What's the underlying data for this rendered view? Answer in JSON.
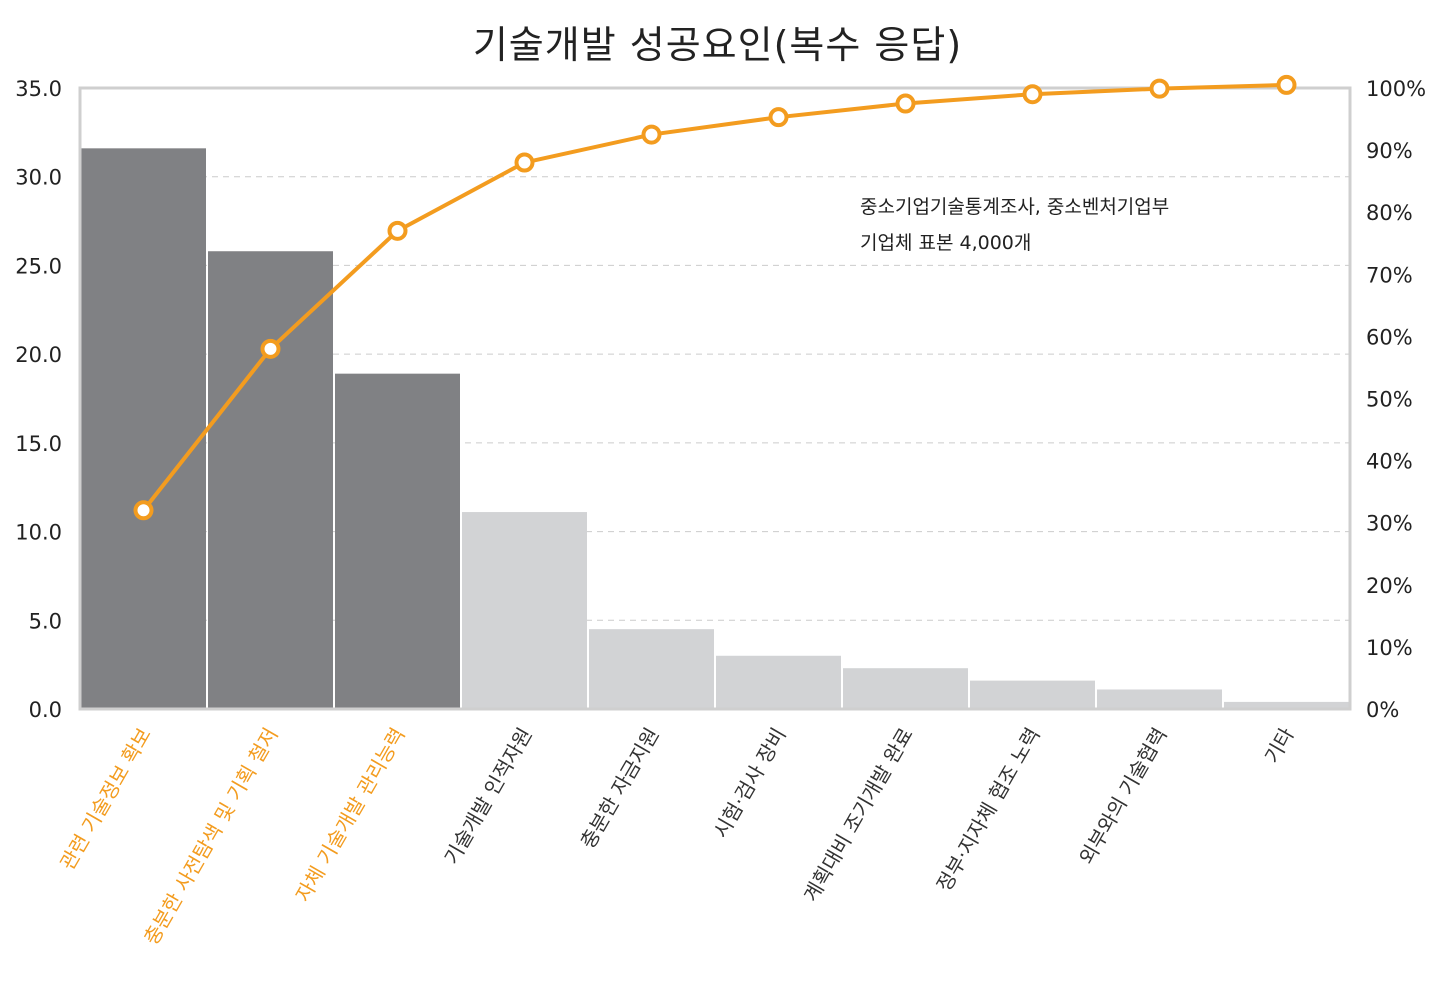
{
  "chart_data": {
    "type": "bar",
    "title": "기술개발 성공요인(복수 응답)",
    "categories": [
      "관련 기술정보 확보",
      "충분한 사전탐색 및 기획 철저",
      "자체 기술개발 관리능력",
      "기술개발 인적자원",
      "충분한 자금지원",
      "시험·검사 장비",
      "계획대비 조기개발 완료",
      "정부·지자체 협조 노력",
      "외부와의 기술협력",
      "기타"
    ],
    "highlight_count": 3,
    "series": [
      {
        "type": "bar",
        "axis": "left",
        "values": [
          31.6,
          25.8,
          18.9,
          11.1,
          4.5,
          3.0,
          2.3,
          1.6,
          1.1,
          0.4
        ]
      },
      {
        "type": "line",
        "axis": "right",
        "values": [
          32,
          58,
          77,
          88,
          92.5,
          95.3,
          97.5,
          99,
          99.9,
          100.5
        ]
      }
    ],
    "y_left": {
      "lim": [
        0,
        35
      ],
      "ticks": [
        "0.0",
        "5.0",
        "10.0",
        "15.0",
        "20.0",
        "25.0",
        "30.0",
        "35.0"
      ]
    },
    "y_right": {
      "lim": [
        0,
        100
      ],
      "ticks": [
        "0%",
        "10%",
        "20%",
        "30%",
        "40%",
        "50%",
        "60%",
        "70%",
        "80%",
        "90%",
        "100%"
      ]
    },
    "annotation": [
      "중소기업기술통계조사, 중소벤처기업부",
      "기업체 표본 4,000개"
    ],
    "grid": "horizontal dashed",
    "colors": {
      "bar_highlight": "#808184",
      "bar_other": "#d2d3d5",
      "line": "#f39c1f",
      "label_highlight": "#f39c1f",
      "label_other": "#333333",
      "axis": "#cfcfcf",
      "grid": "#cccccc"
    }
  }
}
